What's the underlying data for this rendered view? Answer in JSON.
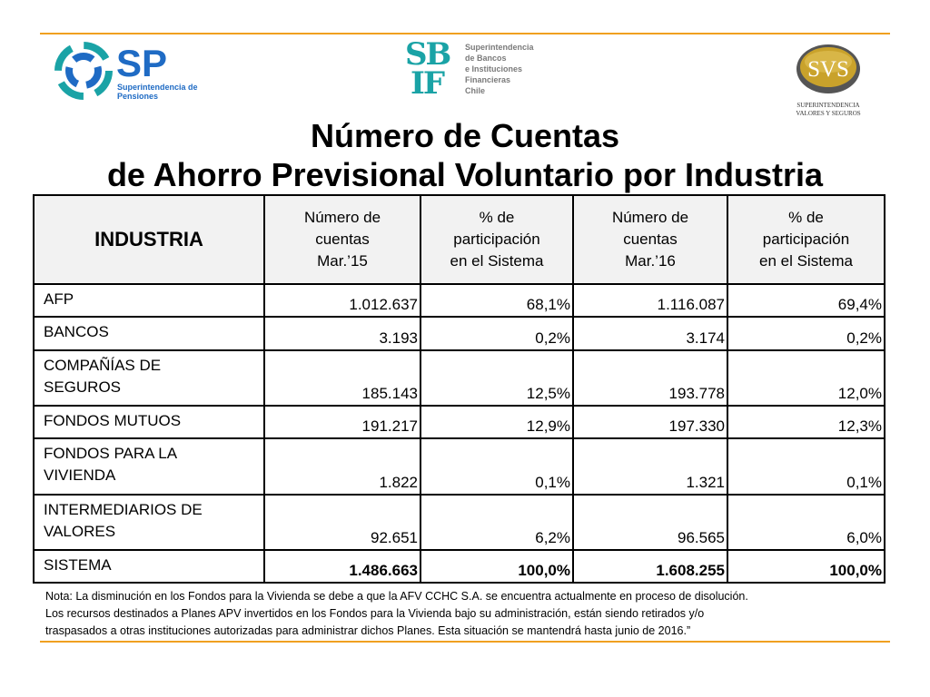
{
  "colors": {
    "rule": "#f0a020",
    "sp_blue": "#1f6bc4",
    "sbif_teal": "#1aa3a6",
    "svs_gold": "#c9a22b"
  },
  "logos": {
    "sp_mark": "SP",
    "sp_line1": "Superintendencia de",
    "sp_line2": "Pensiones",
    "sbif_mark_top": "SB",
    "sbif_mark_bottom": "IF",
    "sbif_line1": "Superintendencia",
    "sbif_line2": "de Bancos",
    "sbif_line3": "e Instituciones",
    "sbif_line4": "Financieras",
    "sbif_line5": "Chile",
    "svs_mark": "SVS",
    "svs_line1": "SUPERINTENDENCIA",
    "svs_line2": "VALORES Y SEGUROS"
  },
  "title": {
    "line1": "Número de Cuentas",
    "line2": "de Ahorro Previsional Voluntario por Industria"
  },
  "table": {
    "header": {
      "industria": "INDUSTRIA",
      "col1": {
        "line1": "Número de",
        "line2": "cuentas",
        "line3": "Mar.’15"
      },
      "col2": {
        "line1": "% de",
        "line2": "participación",
        "line3": "en el Sistema"
      },
      "col3": {
        "line1": "Número de",
        "line2": "cuentas",
        "line3": "Mar.’16"
      },
      "col4": {
        "line1": "% de",
        "line2": "participación",
        "line3": "en el Sistema"
      }
    },
    "rows": [
      {
        "label1": "AFP",
        "label2": "",
        "v1": "1.012.637",
        "v2": "68,1%",
        "v3": "1.116.087",
        "v4": "69,4%"
      },
      {
        "label1": "BANCOS",
        "label2": "",
        "v1": "3.193",
        "v2": "0,2%",
        "v3": "3.174",
        "v4": "0,2%"
      },
      {
        "label1": "COMPAÑÍAS DE",
        "label2": "SEGUROS",
        "v1": "185.143",
        "v2": "12,5%",
        "v3": "193.778",
        "v4": "12,0%"
      },
      {
        "label1": "FONDOS MUTUOS",
        "label2": "",
        "v1": "191.217",
        "v2": "12,9%",
        "v3": "197.330",
        "v4": "12,3%"
      },
      {
        "label1": "FONDOS PARA LA",
        "label2": "VIVIENDA",
        "v1": "1.822",
        "v2": "0,1%",
        "v3": "1.321",
        "v4": "0,1%"
      },
      {
        "label1": "INTERMEDIARIOS DE",
        "label2": "VALORES",
        "v1": "92.651",
        "v2": "6,2%",
        "v3": "96.565",
        "v4": "6,0%"
      },
      {
        "label1": "SISTEMA",
        "label2": "",
        "v1": "1.486.663",
        "v2": "100,0%",
        "v3": "1.608.255",
        "v4": "100,0%"
      }
    ]
  },
  "note": {
    "line1": "Nota: La disminución en los  Fondos para la Vivienda se debe a que la  AFV CCHC S.A. se encuentra actualmente en proceso de disolución.",
    "line2": "Los recursos destinados a Planes APV invertidos en los Fondos para la Vivienda bajo su administración, están siendo retirados y/o",
    "line3": "traspasados a otras instituciones autorizadas para  administrar dichos Planes. Esta situación se mantendrá hasta  junio de 2016.”"
  }
}
